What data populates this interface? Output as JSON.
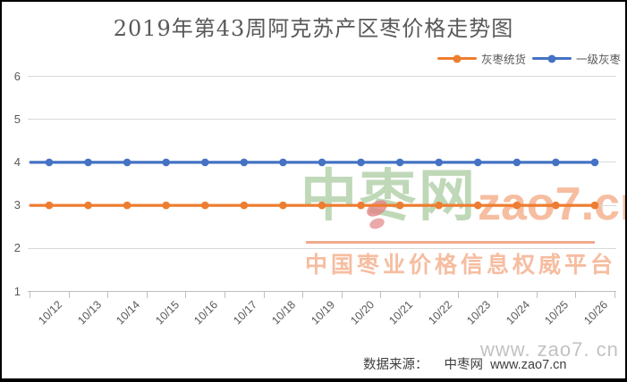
{
  "chart_data": {
    "type": "line",
    "title": "2019年第43周阿克苏产区枣价格走势图",
    "categories": [
      "10/12",
      "10/13",
      "10/14",
      "10/15",
      "10/16",
      "10/17",
      "10/18",
      "10/19",
      "10/20",
      "10/21",
      "10/22",
      "10/23",
      "10/24",
      "10/25",
      "10/26"
    ],
    "series": [
      {
        "name": "灰枣统货",
        "color": "#ED7D31",
        "values": [
          3,
          3,
          3,
          3,
          3,
          3,
          3,
          3,
          3,
          3,
          3,
          3,
          3,
          3,
          3
        ]
      },
      {
        "name": "一级灰枣",
        "color": "#4472C4",
        "values": [
          4,
          4,
          4,
          4,
          4,
          4,
          4,
          4,
          4,
          4,
          4,
          4,
          4,
          4,
          4
        ]
      }
    ],
    "ylim": [
      1,
      6
    ],
    "yticks": [
      1,
      2,
      3,
      4,
      5,
      6
    ],
    "grid": true,
    "legend_position": "top-right",
    "xlabel": "",
    "ylabel": ""
  },
  "watermark": {
    "brand_cn": "中枣网",
    "brand_domain": "zao7.cn",
    "tagline": "中国枣业价格信息权威平台",
    "url_large": "www. zao7. cn",
    "color_green": "#BFD8B8",
    "color_salmon": "#F6BDA0",
    "color_salmon_strong": "#F2A98C",
    "color_pink": "#E28486",
    "color_gray": "#C2C2C2"
  },
  "footer": {
    "source_label": "数据来源：",
    "source_name": "中枣网",
    "source_url": "www.zao7.cn"
  },
  "theme": {
    "text_gray": "#595959",
    "grid_color": "#D9D9D9",
    "axis_color": "#BFBFBF",
    "footer_text": "#3F3F3F"
  }
}
